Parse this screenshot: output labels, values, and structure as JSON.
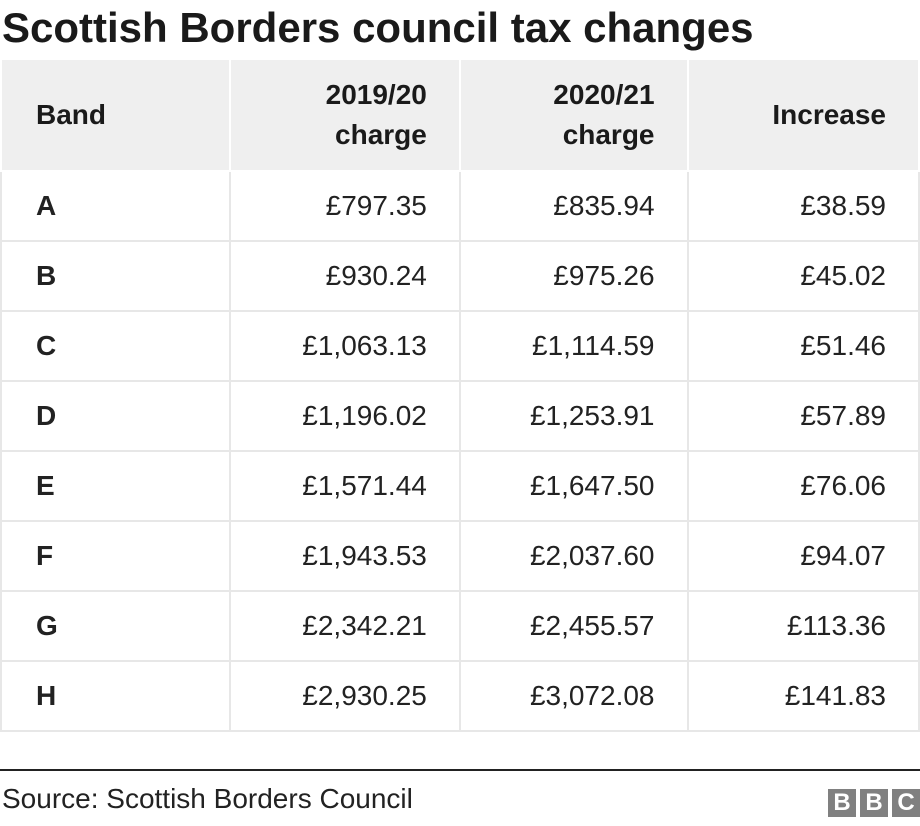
{
  "title": "Scottish Borders council tax changes",
  "chart_data": {
    "type": "table",
    "columns": [
      "Band",
      "2019/20 charge",
      "2020/21 charge",
      "Increase"
    ],
    "rows": [
      {
        "band": "A",
        "charge_2019_20": "£797.35",
        "charge_2020_21": "£835.94",
        "increase": "£38.59"
      },
      {
        "band": "B",
        "charge_2019_20": "£930.24",
        "charge_2020_21": "£975.26",
        "increase": "£45.02"
      },
      {
        "band": "C",
        "charge_2019_20": "£1,063.13",
        "charge_2020_21": "£1,114.59",
        "increase": "£51.46"
      },
      {
        "band": "D",
        "charge_2019_20": "£1,196.02",
        "charge_2020_21": "£1,253.91",
        "increase": "£57.89"
      },
      {
        "band": "E",
        "charge_2019_20": "£1,571.44",
        "charge_2020_21": "£1,647.50",
        "increase": "£76.06"
      },
      {
        "band": "F",
        "charge_2019_20": "£1,943.53",
        "charge_2020_21": "£2,037.60",
        "increase": "£94.07"
      },
      {
        "band": "G",
        "charge_2019_20": "£2,342.21",
        "charge_2020_21": "£2,455.57",
        "increase": "£113.36"
      },
      {
        "band": "H",
        "charge_2019_20": "£2,930.25",
        "charge_2020_21": "£3,072.08",
        "increase": "£141.83"
      }
    ]
  },
  "source": "Source: Scottish Borders Council",
  "logo": {
    "letters": [
      "B",
      "B",
      "C"
    ]
  },
  "colors": {
    "header_bg": "#efefef",
    "grid": "#e7e7e7",
    "logo": "#808080"
  }
}
